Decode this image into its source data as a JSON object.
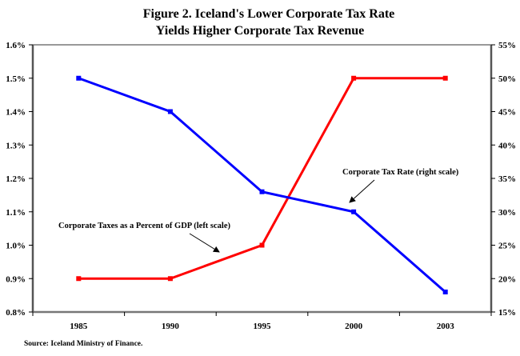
{
  "chart_data": {
    "type": "line",
    "title": "Figure 2. Iceland's Lower Corporate Tax Rate",
    "subtitle": "Yields Higher Corporate Tax Revenue",
    "xlabel": "",
    "ylabel_left": "",
    "ylabel_right": "",
    "categories": [
      "1985",
      "1990",
      "1995",
      "2000",
      "2003"
    ],
    "left_axis": {
      "ylim": [
        0.8,
        1.6
      ],
      "ticks": [
        0.8,
        0.9,
        1.0,
        1.1,
        1.2,
        1.3,
        1.4,
        1.5,
        1.6
      ],
      "tick_labels": [
        "0.8%",
        "0.9%",
        "1.0%",
        "1.1%",
        "1.2%",
        "1.3%",
        "1.4%",
        "1.5%",
        "1.6%"
      ]
    },
    "right_axis": {
      "ylim": [
        15,
        55
      ],
      "ticks": [
        15,
        20,
        25,
        30,
        35,
        40,
        45,
        50,
        55
      ],
      "tick_labels": [
        "15%",
        "20%",
        "25%",
        "30%",
        "35%",
        "40%",
        "45%",
        "50%",
        "55%"
      ]
    },
    "series": [
      {
        "name": "Corporate Taxes as a Percent of GDP (left scale)",
        "axis": "left",
        "color": "#ff0000",
        "values": [
          0.9,
          0.9,
          1.0,
          1.5,
          1.5
        ]
      },
      {
        "name": "Corporate Tax Rate (right scale)",
        "axis": "right",
        "color": "#0000ff",
        "values": [
          50,
          45,
          33,
          30,
          18
        ]
      }
    ],
    "annotations": [
      {
        "text": "Corporate Taxes as a Percent of GDP (left scale)",
        "points_to": "Corporate Taxes as a Percent of GDP (left scale)"
      },
      {
        "text": "Corporate Tax Rate (right scale)",
        "points_to": "Corporate Tax Rate (right scale)"
      }
    ],
    "grid": false,
    "legend": "none",
    "source": "Source: Iceland Ministry of Finance."
  }
}
